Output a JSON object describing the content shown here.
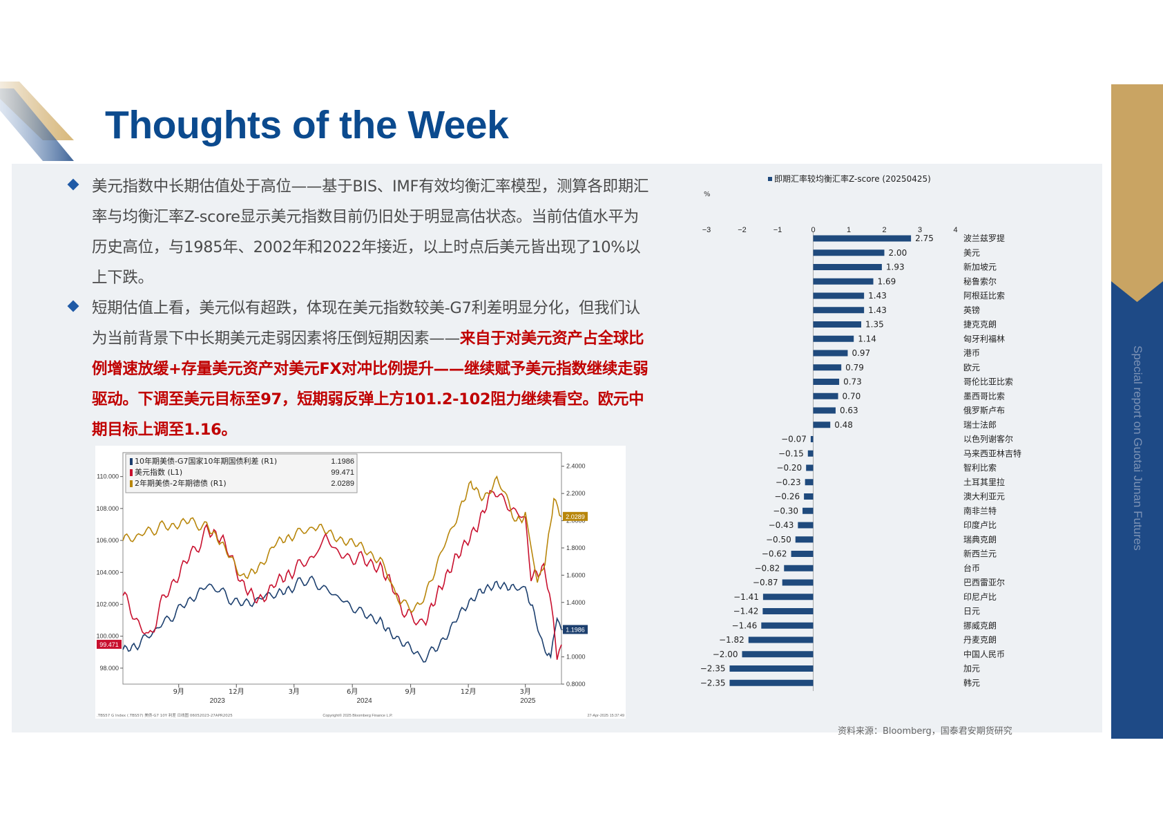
{
  "title": "Thoughts of the Week",
  "side_label": "Special report on Guotai Junan Futures",
  "colors": {
    "brand_blue": "#0b4a8e",
    "side_blue": "#1e4a86",
    "gold": "#c9a463",
    "bar_blue": "#1f4a7d",
    "highlight_red": "#c00000"
  },
  "bullets": [
    {
      "text": "美元指数中长期估值处于高位——基于BIS、IMF有效均衡汇率模型，测算各即期汇率与均衡汇率Z-score显示美元指数目前仍旧处于明显高估状态。当前估值水平为历史高位，与1985年、2002年和2022年接近，以上时点后美元皆出现了10%以上下跌。",
      "highlight": ""
    },
    {
      "text": "短期估值上看，美元似有超跌，体现在美元指数较美-G7利差明显分化，但我们认为当前背景下中长期美元走弱因素将压倒短期因素——",
      "highlight": "来自于对美元资产占全球比例增速放缓+存量美元资产对美元FX对冲比例提升——继续赋予美元指数继续走弱驱动。下调至美元目标至97，短期弱反弹上方101.2-102阻力继续看空。欧元中期目标上调至1.16。"
    }
  ],
  "source": "资料来源：Bloomberg，国泰君安期货研究",
  "chart_data": [
    {
      "type": "line",
      "legend": [
        {
          "name": "10年期美债-G7国家10年期国债利差 (R1)",
          "last": "1.1986",
          "color": "#1c3f6e"
        },
        {
          "name": "美元指数 (L1)",
          "last": "99.471",
          "color": "#c8102e"
        },
        {
          "name": "2年期美债-2年期德债 (R1)",
          "last": "2.0289",
          "color": "#b8860b"
        }
      ],
      "y_left": {
        "range": [
          97.0,
          111.5
        ],
        "ticks": [
          "110.000",
          "108.000",
          "106.000",
          "104.000",
          "102.000",
          "100.000",
          "98.000"
        ]
      },
      "y_right": {
        "range": [
          0.8,
          2.5
        ],
        "ticks": [
          "2.4000",
          "2.2000",
          "2.0000",
          "1.8000",
          "1.6000",
          "1.4000",
          "1.2000",
          "1.0000",
          "0.8000"
        ]
      },
      "x_ticks": [
        "9月",
        "12月",
        "3月",
        "6月",
        "9月",
        "12月",
        "3月"
      ],
      "x_years": [
        "2023",
        "2024",
        "2025"
      ],
      "x_months": [
        "2023-09",
        "2023-12",
        "2024-03",
        "2024-06",
        "2024-09",
        "2024-12",
        "2025-03"
      ],
      "end_labels": {
        "left": "99.471",
        "right_1": "1.1986",
        "right_2": "2.0289"
      },
      "footer_left": ".TBS57 G Index (.TBS57) 美债-G7 10Y 利差  日线图 06052023-27APR2025",
      "footer_mid": "Copyright© 2025 Bloomberg Finance L.P.",
      "footer_right": "27-Apr-2025 15:37:49",
      "x_range": [
        "2023-06-05",
        "2025-04-27"
      ],
      "series": [
        {
          "name": "10年期美债-G7国家10年期国债利差 (R1)",
          "axis": "right",
          "points": [
            [
              "2023-06-05",
              1.05
            ],
            [
              "2023-07-01",
              1.1
            ],
            [
              "2023-08-01",
              1.22
            ],
            [
              "2023-09-10",
              1.38
            ],
            [
              "2023-10-10",
              1.52
            ],
            [
              "2023-11-01",
              1.5
            ],
            [
              "2023-12-05",
              1.38
            ],
            [
              "2024-01-01",
              1.42
            ],
            [
              "2024-02-01",
              1.47
            ],
            [
              "2024-03-01",
              1.52
            ],
            [
              "2024-03-20",
              1.57
            ],
            [
              "2024-04-20",
              1.5
            ],
            [
              "2024-05-15",
              1.42
            ],
            [
              "2024-06-15",
              1.32
            ],
            [
              "2024-07-15",
              1.28
            ],
            [
              "2024-08-01",
              1.18
            ],
            [
              "2024-08-25",
              1.1
            ],
            [
              "2024-09-15",
              0.98
            ],
            [
              "2024-10-10",
              1.05
            ],
            [
              "2024-11-15",
              1.3
            ],
            [
              "2024-12-20",
              1.48
            ],
            [
              "2025-01-15",
              1.55
            ],
            [
              "2025-02-10",
              1.52
            ],
            [
              "2025-03-01",
              1.5
            ],
            [
              "2025-03-15",
              1.3
            ],
            [
              "2025-03-30",
              1.05
            ],
            [
              "2025-04-10",
              0.98
            ],
            [
              "2025-04-20",
              1.32
            ],
            [
              "2025-04-27",
              1.1986
            ]
          ]
        },
        {
          "name": "美元指数 (L1)",
          "axis": "left",
          "points": [
            [
              "2023-06-05",
              102.5
            ],
            [
              "2023-07-15",
              99.8
            ],
            [
              "2023-08-15",
              103.0
            ],
            [
              "2023-09-20",
              105.0
            ],
            [
              "2023-10-15",
              106.5
            ],
            [
              "2023-11-10",
              105.8
            ],
            [
              "2023-12-10",
              103.5
            ],
            [
              "2024-01-05",
              102.2
            ],
            [
              "2024-02-01",
              103.5
            ],
            [
              "2024-03-01",
              104.2
            ],
            [
              "2024-04-01",
              105.0
            ],
            [
              "2024-04-20",
              106.2
            ],
            [
              "2024-05-15",
              105.0
            ],
            [
              "2024-06-15",
              104.8
            ],
            [
              "2024-07-15",
              104.5
            ],
            [
              "2024-08-01",
              103.5
            ],
            [
              "2024-08-25",
              101.3
            ],
            [
              "2024-09-25",
              100.8
            ],
            [
              "2024-10-15",
              103.0
            ],
            [
              "2024-11-10",
              105.0
            ],
            [
              "2024-12-15",
              107.0
            ],
            [
              "2025-01-10",
              109.2
            ],
            [
              "2025-02-01",
              108.2
            ],
            [
              "2025-03-01",
              107.3
            ],
            [
              "2025-03-10",
              104.0
            ],
            [
              "2025-03-30",
              104.2
            ],
            [
              "2025-04-08",
              103.0
            ],
            [
              "2025-04-20",
              99.0
            ],
            [
              "2025-04-27",
              99.471
            ]
          ]
        },
        {
          "name": "2年期美债-2年期德债 (R1)",
          "axis": "right",
          "points": [
            [
              "2023-06-05",
              1.85
            ],
            [
              "2023-07-15",
              1.92
            ],
            [
              "2023-08-15",
              1.97
            ],
            [
              "2023-09-20",
              1.99
            ],
            [
              "2023-10-15",
              1.95
            ],
            [
              "2023-11-10",
              1.8
            ],
            [
              "2023-12-10",
              1.6
            ],
            [
              "2024-01-05",
              1.65
            ],
            [
              "2024-02-01",
              1.85
            ],
            [
              "2024-03-01",
              1.9
            ],
            [
              "2024-04-01",
              1.95
            ],
            [
              "2024-05-01",
              1.9
            ],
            [
              "2024-06-15",
              1.8
            ],
            [
              "2024-07-15",
              1.72
            ],
            [
              "2024-08-15",
              1.4
            ],
            [
              "2024-09-15",
              1.35
            ],
            [
              "2024-10-15",
              1.72
            ],
            [
              "2024-11-15",
              2.05
            ],
            [
              "2024-12-05",
              2.3
            ],
            [
              "2024-12-25",
              2.15
            ],
            [
              "2025-01-15",
              2.32
            ],
            [
              "2025-02-15",
              2.0
            ],
            [
              "2025-03-01",
              2.05
            ],
            [
              "2025-03-20",
              1.55
            ],
            [
              "2025-04-01",
              1.72
            ],
            [
              "2025-04-15",
              2.15
            ],
            [
              "2025-04-27",
              2.0289
            ]
          ]
        }
      ]
    },
    {
      "type": "bar",
      "orientation": "horizontal",
      "title": "即期汇率较均衡汇率Z-score (20250425)",
      "unit": "%",
      "xlim": [
        -3,
        4
      ],
      "x_ticks": [
        -3,
        -2,
        -1,
        0,
        1,
        2,
        3,
        4
      ],
      "categories": [
        "波兰兹罗提",
        "美元",
        "新加坡元",
        "秘鲁索尔",
        "阿根廷比索",
        "英镑",
        "捷克克朗",
        "匈牙利福林",
        "港币",
        "欧元",
        "哥伦比亚比索",
        "墨西哥比索",
        "俄罗斯卢布",
        "瑞士法郎",
        "以色列谢客尔",
        "马来西亚林吉特",
        "智利比索",
        "土耳其里拉",
        "澳大利亚元",
        "南非兰特",
        "印度卢比",
        "瑞典克朗",
        "新西兰元",
        "台币",
        "巴西雷亚尔",
        "印尼卢比",
        "日元",
        "挪威克朗",
        "丹麦克朗",
        "中国人民币",
        "加元",
        "韩元"
      ],
      "values": [
        2.75,
        2.0,
        1.93,
        1.69,
        1.43,
        1.43,
        1.35,
        1.14,
        0.97,
        0.79,
        0.73,
        0.7,
        0.63,
        0.48,
        -0.07,
        -0.15,
        -0.2,
        -0.23,
        -0.26,
        -0.3,
        -0.43,
        -0.5,
        -0.62,
        -0.82,
        -0.87,
        -1.41,
        -1.42,
        -1.46,
        -1.82,
        -2.0,
        -2.35,
        -2.35
      ],
      "value_labels": [
        "2.75",
        "2.00",
        "1.93",
        "1.69",
        "1.43",
        "1.43",
        "1.35",
        "1.14",
        "0.97",
        "0.79",
        "0.73",
        "0.70",
        "0.63",
        "0.48",
        "-0.07",
        "-0.15",
        "-0.20",
        "-0.23",
        "-0.26",
        "-0.30",
        "-0.43",
        "-0.50",
        "-0.62",
        "-0.82",
        "-0.87",
        "-1.41",
        "-1.42",
        "-1.46",
        "-1.82",
        "-2.00",
        "-2.35",
        "-2.35"
      ]
    }
  ]
}
